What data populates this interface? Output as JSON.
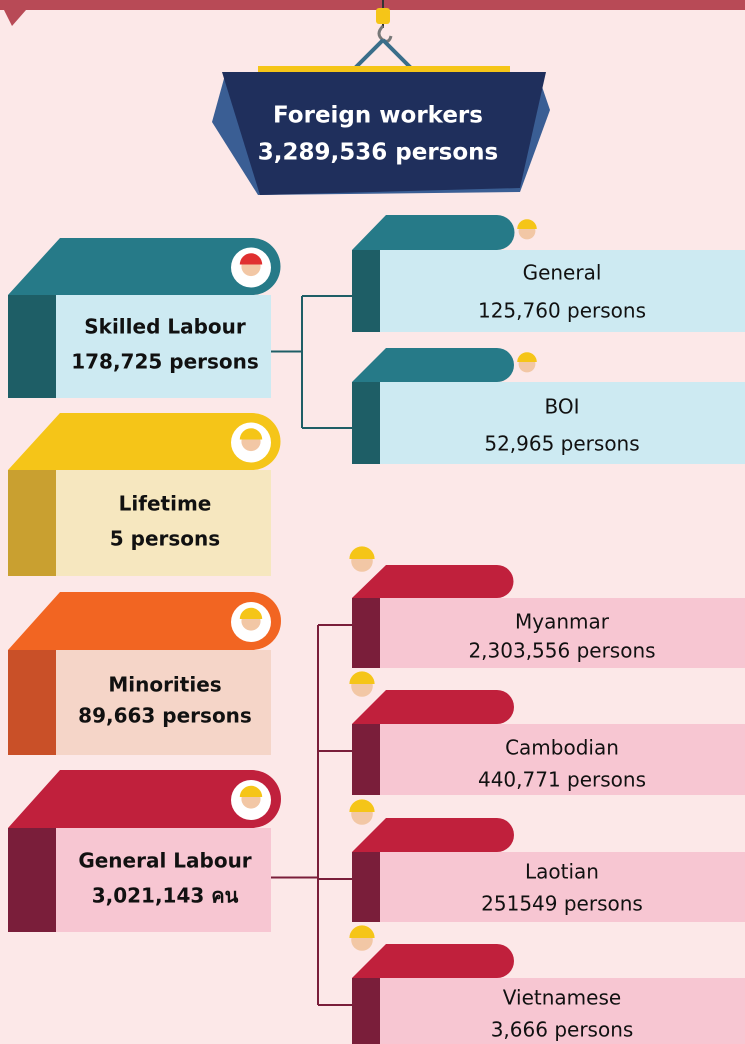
{
  "header": {
    "title": "Foreign workers",
    "total": "3,289,536 persons"
  },
  "groups": [
    {
      "label": "Skilled Labour",
      "count": "178,725 persons",
      "children": [
        {
          "label": "General",
          "count": "125,760 persons"
        },
        {
          "label": "BOI",
          "count": "52,965 persons"
        }
      ]
    },
    {
      "label": "Lifetime",
      "count": "5 persons"
    },
    {
      "label": "Minorities",
      "count": "89,663 persons"
    },
    {
      "label": "General Labour",
      "count": "3,021,143 คน",
      "children": [
        {
          "label": "Myanmar",
          "count": "2,303,556 persons"
        },
        {
          "label": "Cambodian",
          "count": "440,771 persons"
        },
        {
          "label": "Laotian",
          "count": "251549 persons"
        },
        {
          "label": "Vietnamese",
          "count": "3,666 persons"
        }
      ]
    }
  ]
}
